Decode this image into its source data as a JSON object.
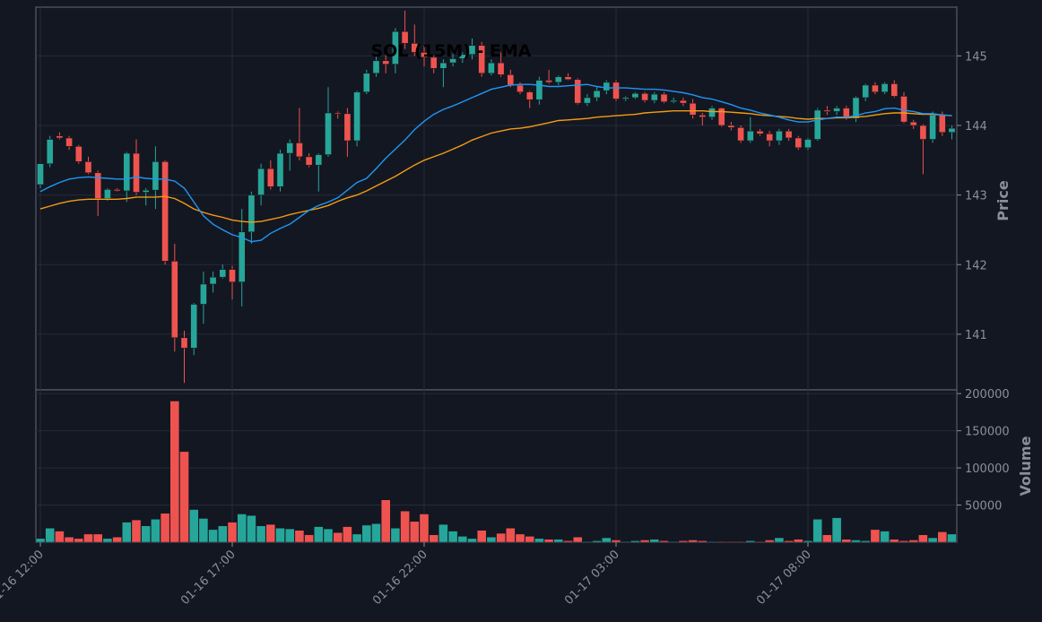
{
  "chart_data": {
    "type": "candlestick",
    "title": "SOL (15M) - EMA",
    "ylabel_price": "Price",
    "ylabel_volume": "Volume",
    "price_ticks": [
      141,
      142,
      143,
      144,
      145
    ],
    "volume_ticks": [
      50000,
      100000,
      150000,
      200000
    ],
    "volume_tick_labels": [
      "50000",
      "100000",
      "150000",
      "200000"
    ],
    "x_ticks": [
      {
        "index": 0,
        "label": "01-16 12:00"
      },
      {
        "index": 20,
        "label": "01-16 17:00"
      },
      {
        "index": 40,
        "label": "01-16 22:00"
      },
      {
        "index": 60,
        "label": "01-17 03:00"
      },
      {
        "index": 80,
        "label": "01-17 08:00"
      }
    ],
    "price_range": [
      140.2,
      145.7
    ],
    "volume_range": [
      0,
      205000
    ],
    "up_color": "#26a69a",
    "down_color": "#ef5350",
    "ema_fast_color": "#2196f3",
    "ema_slow_color": "#f39c12",
    "grid": true,
    "candles": [
      [
        143.15,
        143.45,
        143.1,
        143.45
      ],
      [
        143.45,
        143.85,
        143.4,
        143.8
      ],
      [
        143.85,
        143.9,
        143.8,
        143.82
      ],
      [
        143.82,
        143.85,
        143.65,
        143.7
      ],
      [
        143.7,
        143.72,
        143.45,
        143.48
      ],
      [
        143.48,
        143.55,
        143.3,
        143.32
      ],
      [
        143.32,
        143.35,
        142.7,
        142.95
      ],
      [
        142.95,
        143.1,
        142.92,
        143.08
      ],
      [
        143.08,
        143.1,
        143.05,
        143.06
      ],
      [
        143.06,
        143.62,
        142.9,
        143.6
      ],
      [
        143.6,
        143.8,
        143.0,
        143.04
      ],
      [
        143.04,
        143.1,
        142.85,
        143.07
      ],
      [
        143.07,
        143.7,
        142.8,
        143.48
      ],
      [
        143.48,
        143.5,
        142.0,
        142.05
      ],
      [
        142.05,
        142.3,
        140.75,
        140.95
      ],
      [
        140.95,
        141.05,
        140.3,
        140.8
      ],
      [
        140.8,
        141.45,
        140.7,
        141.43
      ],
      [
        141.43,
        141.9,
        141.15,
        141.72
      ],
      [
        141.72,
        141.9,
        141.6,
        141.82
      ],
      [
        141.82,
        142.0,
        141.8,
        141.93
      ],
      [
        141.93,
        141.98,
        141.5,
        141.75
      ],
      [
        141.75,
        142.8,
        141.4,
        142.47
      ],
      [
        142.47,
        143.05,
        142.3,
        143.0
      ],
      [
        143.0,
        143.45,
        142.85,
        143.38
      ],
      [
        143.38,
        143.5,
        143.08,
        143.12
      ],
      [
        143.12,
        143.65,
        143.05,
        143.6
      ],
      [
        143.6,
        143.8,
        143.35,
        143.75
      ],
      [
        143.75,
        144.25,
        143.5,
        143.55
      ],
      [
        143.55,
        143.6,
        143.4,
        143.43
      ],
      [
        143.43,
        143.6,
        143.05,
        143.58
      ],
      [
        143.58,
        144.55,
        143.55,
        144.18
      ],
      [
        144.18,
        144.2,
        144.1,
        144.17
      ],
      [
        144.17,
        144.25,
        143.55,
        143.78
      ],
      [
        143.78,
        144.5,
        143.7,
        144.48
      ],
      [
        144.48,
        144.8,
        144.45,
        144.75
      ],
      [
        144.75,
        145.0,
        144.7,
        144.93
      ],
      [
        144.93,
        145.1,
        144.75,
        144.88
      ],
      [
        144.88,
        145.4,
        144.75,
        145.35
      ],
      [
        145.35,
        145.65,
        145.1,
        145.18
      ],
      [
        145.18,
        145.45,
        145.0,
        145.05
      ],
      [
        145.05,
        145.15,
        144.85,
        144.98
      ],
      [
        144.98,
        145.0,
        144.75,
        144.82
      ],
      [
        144.82,
        144.95,
        144.55,
        144.9
      ],
      [
        144.9,
        145.1,
        144.85,
        144.96
      ],
      [
        144.96,
        145.05,
        144.9,
        145.02
      ],
      [
        145.02,
        145.25,
        144.95,
        145.15
      ],
      [
        145.15,
        145.2,
        144.7,
        144.75
      ],
      [
        144.75,
        144.95,
        144.72,
        144.9
      ],
      [
        144.9,
        145.05,
        144.7,
        144.73
      ],
      [
        144.73,
        144.8,
        144.55,
        144.58
      ],
      [
        144.58,
        144.62,
        144.45,
        144.48
      ],
      [
        144.48,
        144.5,
        144.25,
        144.37
      ],
      [
        144.37,
        144.7,
        144.3,
        144.65
      ],
      [
        144.65,
        144.8,
        144.6,
        144.62
      ],
      [
        144.62,
        144.72,
        144.58,
        144.7
      ],
      [
        144.7,
        144.75,
        144.65,
        144.66
      ],
      [
        144.66,
        144.68,
        144.3,
        144.32
      ],
      [
        144.32,
        144.45,
        144.28,
        144.4
      ],
      [
        144.4,
        144.55,
        144.35,
        144.5
      ],
      [
        144.5,
        144.65,
        144.45,
        144.62
      ],
      [
        144.62,
        144.65,
        144.35,
        144.38
      ],
      [
        144.38,
        144.42,
        144.35,
        144.4
      ],
      [
        144.4,
        144.48,
        144.38,
        144.46
      ],
      [
        144.46,
        144.48,
        144.33,
        144.36
      ],
      [
        144.36,
        144.48,
        144.32,
        144.45
      ],
      [
        144.45,
        144.48,
        144.32,
        144.34
      ],
      [
        144.34,
        144.4,
        144.32,
        144.36
      ],
      [
        144.36,
        144.4,
        144.28,
        144.32
      ],
      [
        144.32,
        144.38,
        144.1,
        144.15
      ],
      [
        144.15,
        144.18,
        144.0,
        144.12
      ],
      [
        144.12,
        144.28,
        144.08,
        144.25
      ],
      [
        144.25,
        144.26,
        143.98,
        144.0
      ],
      [
        144.0,
        144.05,
        143.93,
        143.97
      ],
      [
        143.97,
        144.0,
        143.75,
        143.78
      ],
      [
        143.78,
        144.12,
        143.75,
        143.92
      ],
      [
        143.92,
        143.95,
        143.85,
        143.88
      ],
      [
        143.88,
        143.92,
        143.7,
        143.78
      ],
      [
        143.78,
        143.95,
        143.72,
        143.92
      ],
      [
        143.92,
        143.95,
        143.78,
        143.82
      ],
      [
        143.82,
        143.85,
        143.65,
        143.68
      ],
      [
        143.68,
        143.82,
        143.65,
        143.8
      ],
      [
        143.8,
        144.25,
        143.78,
        144.22
      ],
      [
        144.22,
        144.28,
        144.15,
        144.2
      ],
      [
        144.2,
        144.28,
        144.15,
        144.25
      ],
      [
        144.25,
        144.28,
        144.08,
        144.1
      ],
      [
        144.1,
        144.42,
        144.05,
        144.4
      ],
      [
        144.4,
        144.6,
        144.35,
        144.58
      ],
      [
        144.58,
        144.62,
        144.45,
        144.48
      ],
      [
        144.48,
        144.62,
        144.45,
        144.6
      ],
      [
        144.6,
        144.65,
        144.4,
        144.42
      ],
      [
        144.42,
        144.48,
        144.03,
        144.05
      ],
      [
        144.05,
        144.08,
        143.95,
        144.0
      ],
      [
        144.0,
        144.02,
        143.3,
        143.8
      ],
      [
        143.8,
        144.2,
        143.75,
        144.15
      ],
      [
        144.15,
        144.2,
        143.85,
        143.9
      ],
      [
        143.9,
        144.0,
        143.8,
        143.96
      ]
    ],
    "ema_fast": [
      143.05,
      143.12,
      143.18,
      143.23,
      143.25,
      143.26,
      143.25,
      143.24,
      143.23,
      143.23,
      143.26,
      143.24,
      143.23,
      143.23,
      143.2,
      143.1,
      142.9,
      142.7,
      142.58,
      142.5,
      142.43,
      142.39,
      142.33,
      142.35,
      142.45,
      142.52,
      142.58,
      142.68,
      142.78,
      142.85,
      142.9,
      142.96,
      143.07,
      143.18,
      143.24,
      143.38,
      143.53,
      143.66,
      143.79,
      143.94,
      144.06,
      144.16,
      144.23,
      144.28,
      144.34,
      144.4,
      144.46,
      144.52,
      144.55,
      144.58,
      144.59,
      144.59,
      144.58,
      144.56,
      144.56,
      144.57,
      144.58,
      144.59,
      144.56,
      144.54,
      144.54,
      144.54,
      144.53,
      144.52,
      144.52,
      144.51,
      144.49,
      144.47,
      144.44,
      144.4,
      144.38,
      144.34,
      144.3,
      144.25,
      144.22,
      144.18,
      144.15,
      144.12,
      144.08,
      144.05,
      144.05,
      144.08,
      144.1,
      144.12,
      144.12,
      144.14,
      144.18,
      144.2,
      144.24,
      144.25,
      144.22,
      144.2,
      144.17,
      144.17,
      144.15,
      144.14
    ],
    "ema_slow": [
      142.8,
      142.84,
      142.88,
      142.91,
      142.93,
      142.94,
      142.94,
      142.94,
      142.94,
      142.95,
      142.97,
      142.97,
      142.97,
      142.98,
      142.95,
      142.88,
      142.8,
      142.75,
      142.71,
      142.68,
      142.64,
      142.62,
      142.61,
      142.62,
      142.65,
      142.68,
      142.72,
      142.75,
      142.78,
      142.81,
      142.85,
      142.91,
      142.96,
      143.0,
      143.06,
      143.13,
      143.2,
      143.27,
      143.35,
      143.43,
      143.5,
      143.55,
      143.6,
      143.66,
      143.72,
      143.79,
      143.84,
      143.89,
      143.92,
      143.95,
      143.96,
      143.98,
      144.01,
      144.04,
      144.07,
      144.08,
      144.09,
      144.1,
      144.12,
      144.13,
      144.14,
      144.15,
      144.16,
      144.18,
      144.19,
      144.2,
      144.21,
      144.21,
      144.21,
      144.21,
      144.2,
      144.2,
      144.19,
      144.18,
      144.17,
      144.15,
      144.14,
      144.13,
      144.12,
      144.1,
      144.09,
      144.1,
      144.1,
      144.11,
      144.11,
      144.12,
      144.13,
      144.15,
      144.17,
      144.18,
      144.18,
      144.17,
      144.16,
      144.16,
      144.15,
      144.14
    ],
    "volumes": [
      5000,
      19000,
      15000,
      7000,
      5000,
      11000,
      11000,
      5000,
      7000,
      27000,
      30000,
      22000,
      31000,
      39000,
      190000,
      122000,
      44000,
      32000,
      17000,
      22000,
      27000,
      38000,
      36000,
      22000,
      24000,
      19000,
      18000,
      16000,
      10000,
      21000,
      18000,
      13000,
      21000,
      11000,
      23000,
      25000,
      57000,
      19000,
      42000,
      28000,
      38000,
      10000,
      24000,
      15000,
      8000,
      5000,
      16000,
      7000,
      12000,
      19000,
      11000,
      8000,
      5000,
      4000,
      4000,
      2000,
      7000,
      1000,
      2000,
      6000,
      3000,
      1000,
      2000,
      3000,
      4000,
      2000,
      1000,
      2000,
      3000,
      2000,
      1000,
      1000,
      1000,
      1000,
      2000,
      1000,
      3000,
      6000,
      2000,
      4000,
      2000,
      31000,
      10000,
      33000,
      4000,
      3000,
      2000,
      17000,
      15000,
      4000,
      2000,
      3000,
      10000,
      6000,
      14000,
      11000
    ]
  }
}
